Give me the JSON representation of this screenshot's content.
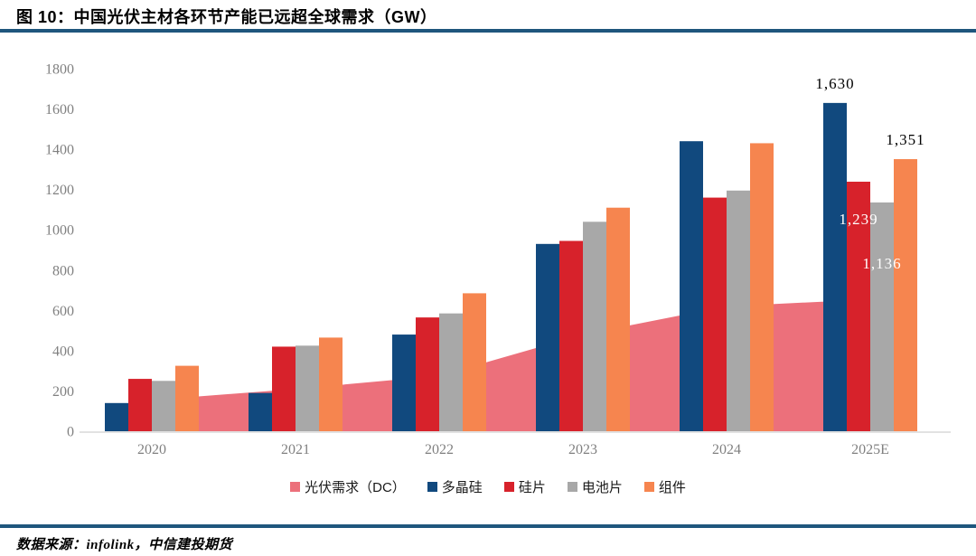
{
  "header": {
    "title": "图 10：中国光伏主材各环节产能已远超全球需求（GW）"
  },
  "footer": {
    "source": "数据来源：infolink，中信建投期货"
  },
  "colors": {
    "demand_area": "#EC707B",
    "polysilicon": "#11497E",
    "wafer": "#D7222B",
    "cell": "#A8A8A8",
    "module": "#F6854F",
    "rule": "#1F567D",
    "axis_text": "#808080",
    "axis_line": "#D9D9D9",
    "label_dark": "#000000",
    "label_light": "#FFFFFF"
  },
  "chart_data": {
    "type": "combo-area-bar",
    "categories": [
      "2020",
      "2021",
      "2022",
      "2023",
      "2024",
      "2025E"
    ],
    "area_series": {
      "key": "demand",
      "name": "光伏需求（DC）",
      "color_key": "demand_area",
      "values": [
        155,
        210,
        275,
        480,
        620,
        655
      ]
    },
    "bar_series": [
      {
        "key": "polysilicon",
        "name": "多晶硅",
        "color_key": "polysilicon",
        "values": [
          140,
          190,
          480,
          930,
          1440,
          1630
        ]
      },
      {
        "key": "wafer",
        "name": "硅片",
        "color_key": "wafer",
        "values": [
          260,
          420,
          565,
          945,
          1160,
          1239
        ]
      },
      {
        "key": "cell",
        "name": "电池片",
        "color_key": "cell",
        "values": [
          250,
          425,
          585,
          1040,
          1195,
          1136
        ]
      },
      {
        "key": "module",
        "name": "组件",
        "color_key": "module",
        "values": [
          325,
          465,
          685,
          1110,
          1430,
          1351
        ]
      }
    ],
    "value_labels": [
      {
        "series": 0,
        "category": 5,
        "text": "1,630",
        "color_key": "label_dark",
        "baseline_dy": -16
      },
      {
        "series": 1,
        "category": 5,
        "text": "1,239",
        "color_key": "label_light",
        "baseline_dy": 47
      },
      {
        "series": 2,
        "category": 5,
        "text": "1,136",
        "color_key": "label_light",
        "baseline_dy": 73
      },
      {
        "series": 3,
        "category": 5,
        "text": "1,351",
        "color_key": "label_dark",
        "baseline_dy": -16
      }
    ],
    "ylim": [
      0,
      1800
    ],
    "ytick_step": 200,
    "grid": false,
    "legend_position": "bottom",
    "xlabel": "",
    "ylabel": ""
  },
  "legend": {
    "items": [
      {
        "label": "光伏需求（DC）",
        "color_key": "demand_area",
        "key": "demand"
      },
      {
        "label": "多晶硅",
        "color_key": "polysilicon",
        "key": "polysilicon"
      },
      {
        "label": "硅片",
        "color_key": "wafer",
        "key": "wafer"
      },
      {
        "label": "电池片",
        "color_key": "cell",
        "key": "cell"
      },
      {
        "label": "组件",
        "color_key": "module",
        "key": "module"
      }
    ]
  }
}
